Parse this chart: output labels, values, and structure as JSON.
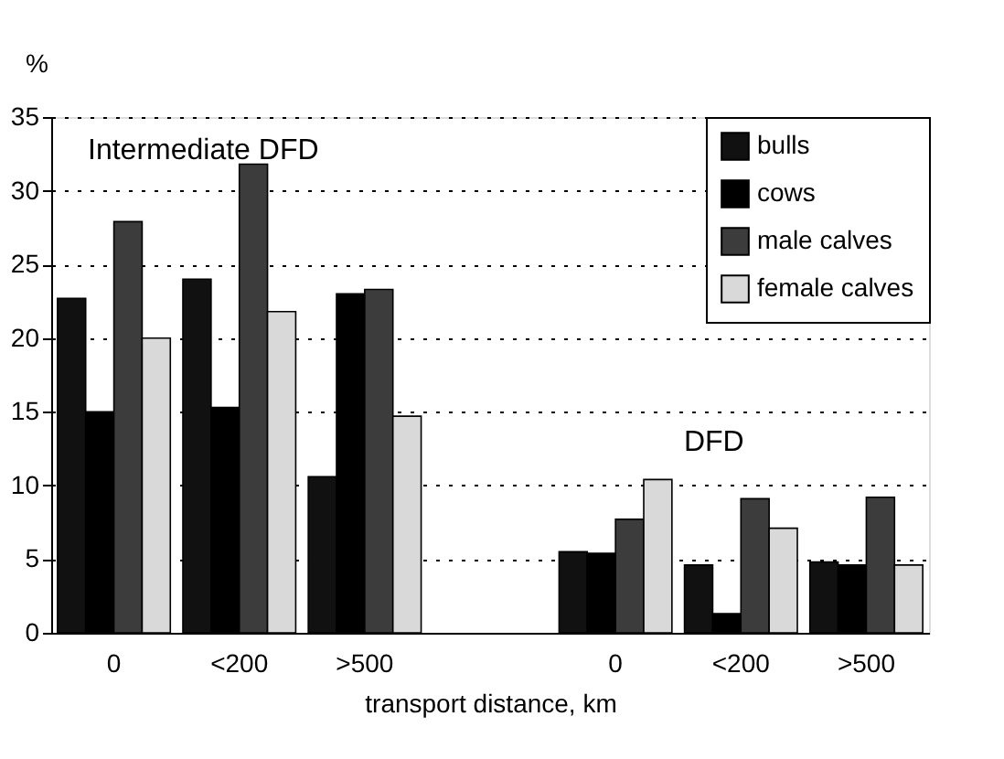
{
  "chart_data": {
    "type": "bar",
    "ylabel": "%",
    "xlabel": "transport distance, km",
    "categories": [
      "0",
      "<200",
      ">500",
      null,
      "0",
      "<200",
      ">500"
    ],
    "series": [
      {
        "name": "bulls",
        "color": "#111111",
        "values": [
          22.7,
          24,
          10.6,
          null,
          5.5,
          4.6,
          4.8
        ]
      },
      {
        "name": "cows",
        "color": "#000000",
        "values": [
          15,
          15.3,
          23,
          null,
          5.4,
          1.3,
          4.6
        ]
      },
      {
        "name": "male calves",
        "color": "#3c3c3c",
        "values": [
          27.9,
          31.8,
          23.3,
          null,
          7.7,
          9.1,
          9.2
        ]
      },
      {
        "name": "female calves",
        "color": "#d9d9d9",
        "values": [
          20,
          21.8,
          14.7,
          null,
          10.4,
          7.1,
          4.6
        ]
      }
    ],
    "annotations": [
      "Intermediate DFD",
      "DFD"
    ],
    "ylim": [
      0,
      35
    ],
    "yticks": [
      0,
      5,
      10,
      15,
      20,
      25,
      30,
      35
    ],
    "grid": "y",
    "legend": "top right"
  }
}
